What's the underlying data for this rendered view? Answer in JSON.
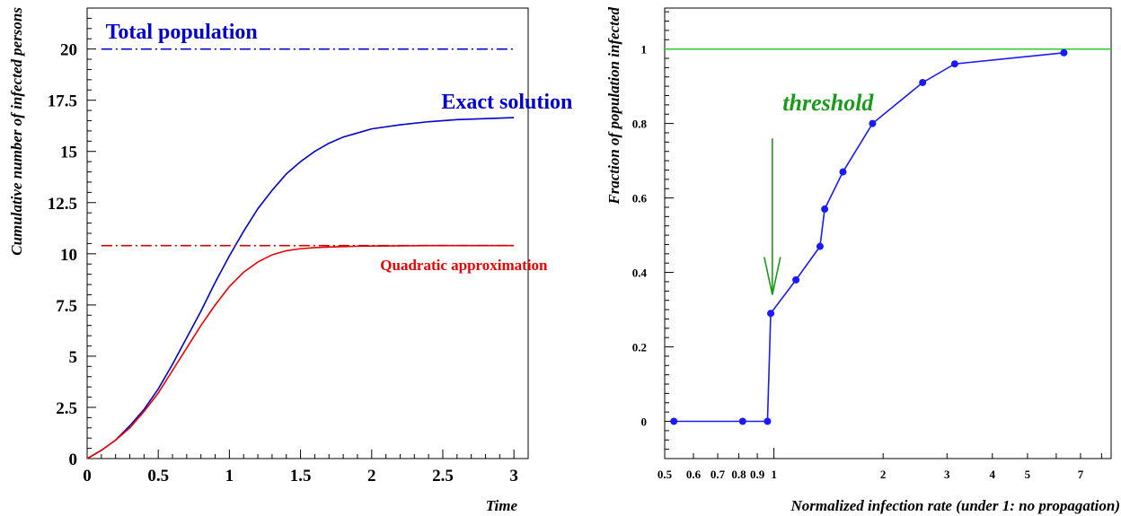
{
  "chart_data": [
    {
      "type": "line",
      "xlabel": "Time",
      "ylabel": "Cumulative number of infected persons",
      "xlim": [
        0,
        3.1
      ],
      "ylim": [
        0,
        22
      ],
      "x_ticks": [
        0,
        0.5,
        1,
        1.5,
        2,
        2.5,
        3
      ],
      "x_tick_labels": [
        "0",
        "0.5",
        "1",
        "1.5",
        "2",
        "2.5",
        "3"
      ],
      "y_ticks": [
        0,
        2.5,
        5,
        7.5,
        10,
        12.5,
        15,
        17.5,
        20
      ],
      "y_tick_labels": [
        "0",
        "2.5",
        "5",
        "7.5",
        "10",
        "12.5",
        "15",
        "17.5",
        "20"
      ],
      "grid": false,
      "colors": {
        "exact": "#0000cc",
        "quadratic": "#ee0000",
        "total": "#0000cc",
        "asymptote": "#cc0000"
      },
      "series": [
        {
          "name": "Exact solution",
          "style": "solid",
          "x": [
            0,
            0.1,
            0.2,
            0.3,
            0.4,
            0.5,
            0.6,
            0.7,
            0.8,
            0.9,
            1.0,
            1.1,
            1.2,
            1.3,
            1.4,
            1.5,
            1.6,
            1.7,
            1.8,
            1.9,
            2.0,
            2.2,
            2.4,
            2.6,
            2.8,
            3.0
          ],
          "y": [
            0,
            0.4,
            0.9,
            1.6,
            2.4,
            3.4,
            4.6,
            5.9,
            7.2,
            8.6,
            9.9,
            11.1,
            12.2,
            13.1,
            13.9,
            14.5,
            15.0,
            15.4,
            15.7,
            15.9,
            16.1,
            16.3,
            16.45,
            16.55,
            16.6,
            16.65
          ]
        },
        {
          "name": "Quadratic approximation",
          "style": "solid",
          "x": [
            0,
            0.1,
            0.2,
            0.3,
            0.4,
            0.5,
            0.6,
            0.7,
            0.8,
            0.9,
            1.0,
            1.1,
            1.2,
            1.3,
            1.4,
            1.5,
            1.6,
            1.7,
            1.8,
            1.9,
            2.0,
            2.2,
            2.4,
            2.6,
            2.8,
            3.0
          ],
          "y": [
            0,
            0.4,
            0.9,
            1.5,
            2.3,
            3.2,
            4.3,
            5.4,
            6.5,
            7.5,
            8.4,
            9.1,
            9.6,
            9.95,
            10.15,
            10.25,
            10.3,
            10.33,
            10.35,
            10.37,
            10.38,
            10.39,
            10.4,
            10.4,
            10.4,
            10.4
          ]
        },
        {
          "name": "Total population",
          "style": "dashdot",
          "x": [
            0.1,
            3.0
          ],
          "y": [
            20,
            20
          ]
        },
        {
          "name": "",
          "style": "dashdot",
          "x": [
            0.1,
            3.0
          ],
          "y": [
            10.4,
            10.4
          ]
        }
      ],
      "annotations": [
        {
          "text": "Total population",
          "x": 0.13,
          "y": 20.5
        },
        {
          "text": "Exact solution",
          "x": 2.49,
          "y": 17.1
        },
        {
          "text": "Quadratic approximation",
          "x": 2.06,
          "y": 9.2
        }
      ]
    },
    {
      "type": "line",
      "xlabel": "Normalized infection rate (under 1: no propagation)",
      "ylabel": "Fraction of population infected",
      "xscale": "log",
      "xlim": [
        0.5,
        8.5
      ],
      "ylim": [
        -0.1,
        1.11
      ],
      "x_ticks": [
        0.5,
        0.6,
        0.7,
        0.8,
        0.9,
        1,
        2,
        3,
        4,
        5,
        7
      ],
      "x_tick_labels": [
        "0.5",
        "0.6",
        "0.7",
        "0.8",
        "0.9",
        "1",
        "2",
        "3",
        "4",
        "5",
        "7"
      ],
      "y_ticks": [
        0,
        0.2,
        0.4,
        0.6,
        0.8,
        1
      ],
      "y_tick_labels": [
        "0",
        "0.2",
        "0.4",
        "0.6",
        "0.8",
        "1"
      ],
      "grid": false,
      "colors": {
        "data": "#1a1aff",
        "reference": "#33cc33",
        "threshold": "#1a9a1a"
      },
      "series": [
        {
          "name": "",
          "style": "solid-markers",
          "x": [
            0.53,
            0.82,
            0.96,
            0.98,
            1.15,
            1.34,
            1.38,
            1.55,
            1.87,
            2.57,
            3.15,
            6.3
          ],
          "y": [
            0,
            0,
            0,
            0.29,
            0.38,
            0.47,
            0.57,
            0.67,
            0.8,
            0.91,
            0.96,
            0.99
          ]
        },
        {
          "name": "",
          "style": "solid",
          "x": [
            0.5,
            8.5
          ],
          "y": [
            1,
            1
          ]
        }
      ],
      "annotations": [
        {
          "text": "threshold",
          "x": 1.41,
          "y": 0.835
        },
        {
          "text": "",
          "arrow_from": [
            0.99,
            0.76
          ],
          "arrow_to": [
            0.99,
            0.34
          ]
        }
      ]
    }
  ]
}
